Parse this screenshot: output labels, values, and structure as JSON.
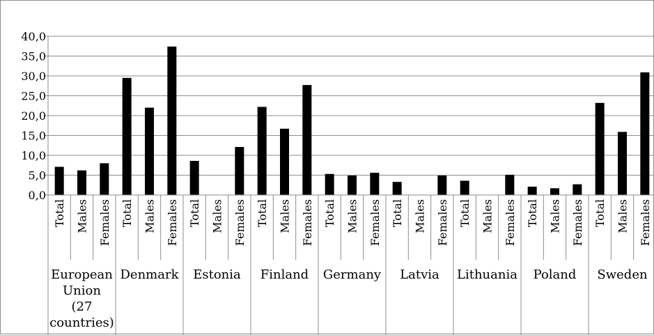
{
  "chart_data": {
    "type": "bar",
    "ylim": [
      0,
      40
    ],
    "yticks": [
      "0,0",
      "5,0",
      "10,0",
      "15,0",
      "20,0",
      "25,0",
      "30,0",
      "35,0",
      "40,0"
    ],
    "grid": true,
    "legend": "none",
    "sub_labels": [
      "Total",
      "Males",
      "Females"
    ],
    "groups": [
      {
        "label": [
          "European",
          "Union",
          "(27",
          "countries)"
        ],
        "values": [
          7.1,
          6.2,
          8.0
        ]
      },
      {
        "label": [
          "Denmark"
        ],
        "values": [
          29.5,
          22.0,
          37.4
        ]
      },
      {
        "label": [
          "Estonia"
        ],
        "values": [
          8.6,
          null,
          12.1
        ]
      },
      {
        "label": [
          "Finland"
        ],
        "values": [
          22.2,
          16.7,
          27.7
        ]
      },
      {
        "label": [
          "Germany"
        ],
        "values": [
          5.3,
          4.9,
          5.6
        ]
      },
      {
        "label": [
          "Latvia"
        ],
        "values": [
          3.3,
          null,
          4.9
        ]
      },
      {
        "label": [
          "Lithuania"
        ],
        "values": [
          3.6,
          null,
          5.1
        ]
      },
      {
        "label": [
          "Poland"
        ],
        "values": [
          2.1,
          1.7,
          2.7
        ]
      },
      {
        "label": [
          "Sweden"
        ],
        "values": [
          23.2,
          15.9,
          30.9
        ]
      }
    ]
  }
}
